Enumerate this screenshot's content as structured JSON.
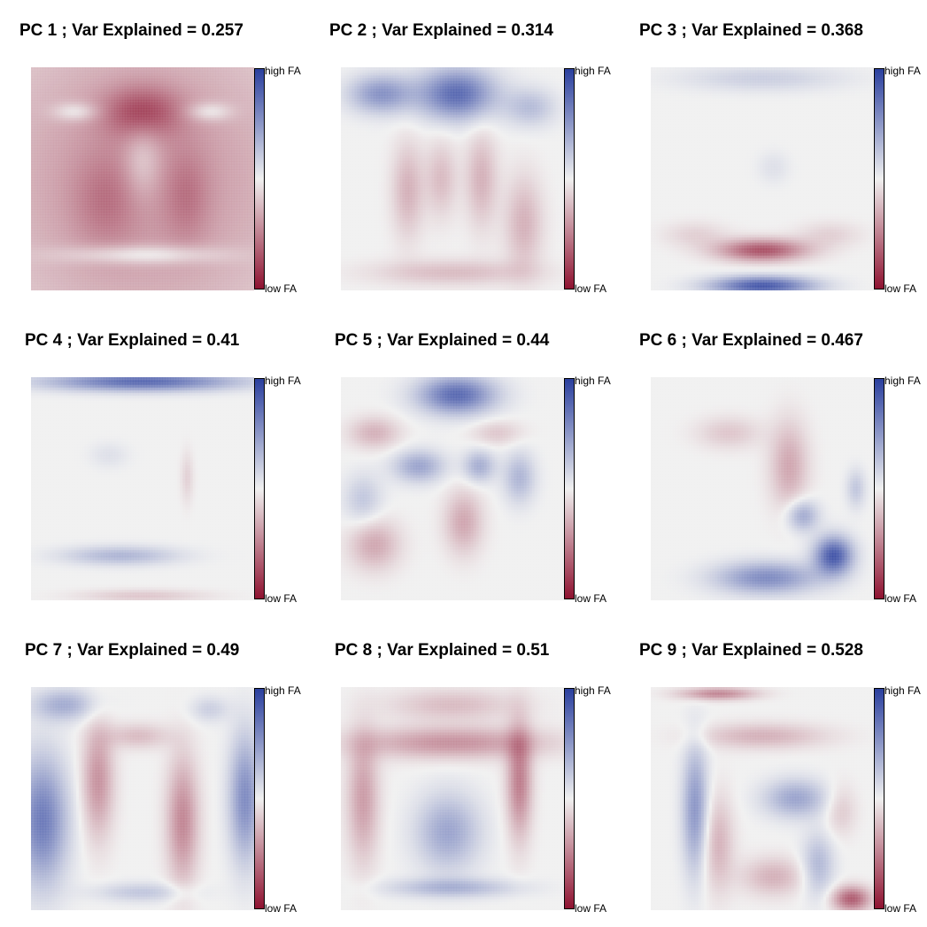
{
  "chart_data": [
    {
      "type": "heatmap",
      "title": "PC 1 ; Var Explained = 0.257",
      "colorbar": {
        "high_label": "high FA",
        "low_label": "low FA",
        "colors": {
          "high": "#2a3f9e",
          "mid": "#f0f0f0",
          "low": "#8e1230"
        }
      },
      "variance_explained": 0.257,
      "pattern": [
        {
          "x": 0.5,
          "y": 0.5,
          "sx": 0.6,
          "sy": 0.6,
          "a": -0.45
        },
        {
          "x": 0.5,
          "y": 0.2,
          "sx": 0.12,
          "sy": 0.08,
          "a": -0.45
        },
        {
          "x": 0.33,
          "y": 0.6,
          "sx": 0.1,
          "sy": 0.15,
          "a": -0.2
        },
        {
          "x": 0.7,
          "y": 0.58,
          "sx": 0.07,
          "sy": 0.15,
          "a": -0.2
        },
        {
          "x": 0.2,
          "y": 0.2,
          "sx": 0.07,
          "sy": 0.03,
          "a": 0.3
        },
        {
          "x": 0.8,
          "y": 0.2,
          "sx": 0.07,
          "sy": 0.03,
          "a": 0.3
        },
        {
          "x": 0.5,
          "y": 0.84,
          "sx": 0.25,
          "sy": 0.03,
          "a": 0.35
        },
        {
          "x": 0.5,
          "y": 0.42,
          "sx": 0.06,
          "sy": 0.12,
          "a": 0.25
        }
      ]
    },
    {
      "type": "heatmap",
      "title": "PC 2 ; Var Explained = 0.314",
      "colorbar": {
        "high_label": "high FA",
        "low_label": "low FA",
        "colors": {
          "high": "#2a3f9e",
          "mid": "#f0f0f0",
          "low": "#8e1230"
        }
      },
      "variance_explained": 0.314,
      "pattern": [
        {
          "x": 0.52,
          "y": 0.12,
          "sx": 0.12,
          "sy": 0.08,
          "a": 0.8
        },
        {
          "x": 0.18,
          "y": 0.12,
          "sx": 0.1,
          "sy": 0.06,
          "a": 0.55
        },
        {
          "x": 0.85,
          "y": 0.18,
          "sx": 0.08,
          "sy": 0.06,
          "a": 0.3
        },
        {
          "x": 0.3,
          "y": 0.55,
          "sx": 0.05,
          "sy": 0.15,
          "a": -0.3
        },
        {
          "x": 0.45,
          "y": 0.5,
          "sx": 0.05,
          "sy": 0.12,
          "a": -0.25
        },
        {
          "x": 0.63,
          "y": 0.5,
          "sx": 0.05,
          "sy": 0.15,
          "a": -0.3
        },
        {
          "x": 0.82,
          "y": 0.7,
          "sx": 0.06,
          "sy": 0.15,
          "a": -0.3
        },
        {
          "x": 0.5,
          "y": 0.92,
          "sx": 0.25,
          "sy": 0.04,
          "a": -0.25
        }
      ]
    },
    {
      "type": "heatmap",
      "title": "PC 3 ; Var Explained = 0.368",
      "colorbar": {
        "high_label": "high FA",
        "low_label": "low FA",
        "colors": {
          "high": "#2a3f9e",
          "mid": "#f0f0f0",
          "low": "#8e1230"
        }
      },
      "variance_explained": 0.368,
      "pattern": [
        {
          "x": 0.5,
          "y": 0.98,
          "sx": 0.16,
          "sy": 0.03,
          "a": 0.9
        },
        {
          "x": 0.5,
          "y": 0.82,
          "sx": 0.14,
          "sy": 0.035,
          "a": -0.75
        },
        {
          "x": 0.5,
          "y": 0.05,
          "sx": 0.25,
          "sy": 0.04,
          "a": 0.2
        },
        {
          "x": 0.2,
          "y": 0.75,
          "sx": 0.1,
          "sy": 0.04,
          "a": -0.15
        },
        {
          "x": 0.8,
          "y": 0.75,
          "sx": 0.1,
          "sy": 0.04,
          "a": -0.15
        },
        {
          "x": 0.55,
          "y": 0.45,
          "sx": 0.05,
          "sy": 0.05,
          "a": 0.1
        }
      ]
    },
    {
      "type": "heatmap",
      "title": "PC 4 ; Var Explained = 0.41",
      "colorbar": {
        "high_label": "high FA",
        "low_label": "low FA",
        "colors": {
          "high": "#2a3f9e",
          "mid": "#f0f0f0",
          "low": "#8e1230"
        }
      },
      "variance_explained": 0.41,
      "pattern": [
        {
          "x": 0.5,
          "y": 0.02,
          "sx": 0.3,
          "sy": 0.03,
          "a": 0.8
        },
        {
          "x": 0.4,
          "y": 0.8,
          "sx": 0.18,
          "sy": 0.03,
          "a": 0.35
        },
        {
          "x": 0.5,
          "y": 0.98,
          "sx": 0.2,
          "sy": 0.02,
          "a": -0.2
        },
        {
          "x": 0.7,
          "y": 0.45,
          "sx": 0.02,
          "sy": 0.08,
          "a": -0.15
        },
        {
          "x": 0.35,
          "y": 0.35,
          "sx": 0.06,
          "sy": 0.04,
          "a": 0.1
        }
      ]
    },
    {
      "type": "heatmap",
      "title": "PC 5 ; Var Explained = 0.44",
      "colorbar": {
        "high_label": "high FA",
        "low_label": "low FA",
        "colors": {
          "high": "#2a3f9e",
          "mid": "#f0f0f0",
          "low": "#8e1230"
        }
      },
      "variance_explained": 0.44,
      "pattern": [
        {
          "x": 0.52,
          "y": 0.08,
          "sx": 0.12,
          "sy": 0.06,
          "a": 0.8
        },
        {
          "x": 0.35,
          "y": 0.4,
          "sx": 0.08,
          "sy": 0.05,
          "a": 0.45
        },
        {
          "x": 0.62,
          "y": 0.4,
          "sx": 0.05,
          "sy": 0.05,
          "a": 0.4
        },
        {
          "x": 0.8,
          "y": 0.45,
          "sx": 0.05,
          "sy": 0.08,
          "a": 0.35
        },
        {
          "x": 0.15,
          "y": 0.25,
          "sx": 0.08,
          "sy": 0.05,
          "a": -0.3
        },
        {
          "x": 0.15,
          "y": 0.75,
          "sx": 0.08,
          "sy": 0.08,
          "a": -0.35
        },
        {
          "x": 0.55,
          "y": 0.65,
          "sx": 0.06,
          "sy": 0.1,
          "a": -0.35
        },
        {
          "x": 0.7,
          "y": 0.25,
          "sx": 0.08,
          "sy": 0.04,
          "a": -0.2
        },
        {
          "x": 0.1,
          "y": 0.55,
          "sx": 0.06,
          "sy": 0.08,
          "a": 0.25
        }
      ]
    },
    {
      "type": "heatmap",
      "title": "PC 6 ; Var Explained = 0.467",
      "colorbar": {
        "high_label": "high FA",
        "low_label": "low FA",
        "colors": {
          "high": "#2a3f9e",
          "mid": "#f0f0f0",
          "low": "#8e1230"
        }
      },
      "variance_explained": 0.467,
      "pattern": [
        {
          "x": 0.82,
          "y": 0.8,
          "sx": 0.06,
          "sy": 0.06,
          "a": 0.9
        },
        {
          "x": 0.52,
          "y": 0.9,
          "sx": 0.16,
          "sy": 0.05,
          "a": 0.6
        },
        {
          "x": 0.68,
          "y": 0.62,
          "sx": 0.05,
          "sy": 0.05,
          "a": 0.45
        },
        {
          "x": 0.62,
          "y": 0.4,
          "sx": 0.06,
          "sy": 0.14,
          "a": -0.35
        },
        {
          "x": 0.35,
          "y": 0.25,
          "sx": 0.1,
          "sy": 0.05,
          "a": -0.2
        },
        {
          "x": 0.92,
          "y": 0.5,
          "sx": 0.03,
          "sy": 0.06,
          "a": 0.25
        }
      ]
    },
    {
      "type": "heatmap",
      "title": "PC 7 ; Var Explained = 0.49",
      "colorbar": {
        "high_label": "high FA",
        "low_label": "low FA",
        "colors": {
          "high": "#2a3f9e",
          "mid": "#f0f0f0",
          "low": "#8e1230"
        }
      },
      "variance_explained": 0.49,
      "pattern": [
        {
          "x": 0.05,
          "y": 0.6,
          "sx": 0.08,
          "sy": 0.2,
          "a": 0.7
        },
        {
          "x": 0.96,
          "y": 0.5,
          "sx": 0.05,
          "sy": 0.2,
          "a": 0.6
        },
        {
          "x": 0.15,
          "y": 0.08,
          "sx": 0.1,
          "sy": 0.05,
          "a": 0.4
        },
        {
          "x": 0.3,
          "y": 0.42,
          "sx": 0.05,
          "sy": 0.18,
          "a": -0.45
        },
        {
          "x": 0.68,
          "y": 0.6,
          "sx": 0.05,
          "sy": 0.2,
          "a": -0.5
        },
        {
          "x": 0.48,
          "y": 0.22,
          "sx": 0.1,
          "sy": 0.04,
          "a": -0.25
        },
        {
          "x": 0.5,
          "y": 0.92,
          "sx": 0.15,
          "sy": 0.03,
          "a": 0.25
        },
        {
          "x": 0.8,
          "y": 0.1,
          "sx": 0.06,
          "sy": 0.04,
          "a": 0.2
        }
      ]
    },
    {
      "type": "heatmap",
      "title": "PC 8 ; Var Explained = 0.51",
      "colorbar": {
        "high_label": "high FA",
        "low_label": "low FA",
        "colors": {
          "high": "#2a3f9e",
          "mid": "#f0f0f0",
          "low": "#8e1230"
        }
      },
      "variance_explained": 0.51,
      "pattern": [
        {
          "x": 0.5,
          "y": 0.25,
          "sx": 0.3,
          "sy": 0.05,
          "a": -0.45
        },
        {
          "x": 0.1,
          "y": 0.5,
          "sx": 0.05,
          "sy": 0.2,
          "a": -0.4
        },
        {
          "x": 0.8,
          "y": 0.42,
          "sx": 0.04,
          "sy": 0.18,
          "a": -0.55
        },
        {
          "x": 0.48,
          "y": 0.65,
          "sx": 0.1,
          "sy": 0.12,
          "a": 0.45
        },
        {
          "x": 0.5,
          "y": 0.08,
          "sx": 0.2,
          "sy": 0.05,
          "a": -0.25
        },
        {
          "x": 0.5,
          "y": 0.9,
          "sx": 0.2,
          "sy": 0.03,
          "a": 0.35
        }
      ]
    },
    {
      "type": "heatmap",
      "title": "PC 9 ; Var Explained = 0.528",
      "colorbar": {
        "high_label": "high FA",
        "low_label": "low FA",
        "colors": {
          "high": "#2a3f9e",
          "mid": "#f0f0f0",
          "low": "#8e1230"
        }
      },
      "variance_explained": 0.528,
      "pattern": [
        {
          "x": 0.2,
          "y": 0.55,
          "sx": 0.04,
          "sy": 0.2,
          "a": 0.55
        },
        {
          "x": 0.65,
          "y": 0.5,
          "sx": 0.1,
          "sy": 0.06,
          "a": 0.45
        },
        {
          "x": 0.75,
          "y": 0.8,
          "sx": 0.05,
          "sy": 0.1,
          "a": 0.35
        },
        {
          "x": 0.9,
          "y": 0.95,
          "sx": 0.06,
          "sy": 0.04,
          "a": -0.7
        },
        {
          "x": 0.3,
          "y": 0.03,
          "sx": 0.12,
          "sy": 0.02,
          "a": -0.5
        },
        {
          "x": 0.5,
          "y": 0.22,
          "sx": 0.2,
          "sy": 0.04,
          "a": -0.3
        },
        {
          "x": 0.3,
          "y": 0.7,
          "sx": 0.05,
          "sy": 0.15,
          "a": -0.3
        },
        {
          "x": 0.55,
          "y": 0.85,
          "sx": 0.1,
          "sy": 0.06,
          "a": -0.3
        },
        {
          "x": 0.85,
          "y": 0.55,
          "sx": 0.05,
          "sy": 0.08,
          "a": -0.2
        }
      ]
    }
  ]
}
